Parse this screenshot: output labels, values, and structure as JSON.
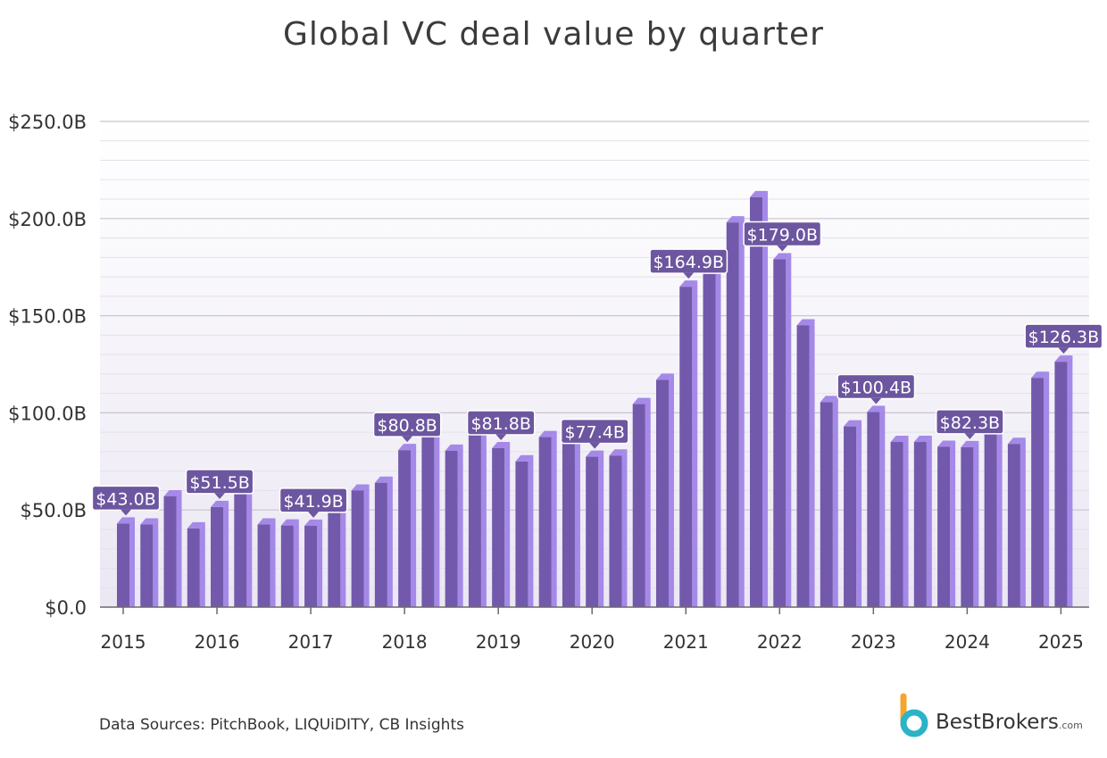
{
  "chart_data": {
    "type": "bar",
    "title": "Global VC deal value by quarter",
    "xlabel": "",
    "ylabel": "",
    "ylim": [
      0,
      250
    ],
    "y_ticks": [
      0,
      50,
      100,
      150,
      200,
      250
    ],
    "y_tick_labels": [
      "$0.0",
      "$50.0B",
      "$100.0B",
      "$150.0B",
      "$200.0B",
      "$250.0B"
    ],
    "x_tick_labels": [
      "2015",
      "2016",
      "2017",
      "2018",
      "2019",
      "2020",
      "2021",
      "2022",
      "2023",
      "2024",
      "2025"
    ],
    "categories": [
      "2015 Q1",
      "2015 Q2",
      "2015 Q3",
      "2015 Q4",
      "2016 Q1",
      "2016 Q2",
      "2016 Q3",
      "2016 Q4",
      "2017 Q1",
      "2017 Q2",
      "2017 Q3",
      "2017 Q4",
      "2018 Q1",
      "2018 Q2",
      "2018 Q3",
      "2018 Q4",
      "2019 Q1",
      "2019 Q2",
      "2019 Q3",
      "2019 Q4",
      "2020 Q1",
      "2020 Q2",
      "2020 Q3",
      "2020 Q4",
      "2021 Q1",
      "2021 Q2",
      "2021 Q3",
      "2021 Q4",
      "2022 Q1",
      "2022 Q2",
      "2022 Q3",
      "2022 Q4",
      "2023 Q1",
      "2023 Q2",
      "2023 Q3",
      "2023 Q4",
      "2024 Q1",
      "2024 Q2",
      "2024 Q3",
      "2024 Q4",
      "2025 Q1"
    ],
    "values": [
      43.0,
      42.5,
      57.0,
      40.5,
      51.5,
      60.0,
      42.5,
      42.0,
      41.9,
      50.5,
      60.0,
      64.0,
      80.8,
      88.0,
      80.5,
      90.0,
      81.8,
      75.0,
      87.5,
      87.0,
      77.4,
      78.0,
      104.5,
      117.0,
      164.9,
      174.0,
      198.0,
      211.0,
      179.0,
      145.0,
      105.5,
      93.0,
      100.4,
      85.0,
      85.0,
      82.5,
      82.3,
      91.0,
      84.0,
      118.0,
      126.3
    ],
    "data_labels": [
      {
        "index": 0,
        "text": "$43.0B"
      },
      {
        "index": 4,
        "text": "$51.5B"
      },
      {
        "index": 8,
        "text": "$41.9B"
      },
      {
        "index": 12,
        "text": "$80.8B"
      },
      {
        "index": 16,
        "text": "$81.8B"
      },
      {
        "index": 20,
        "text": "$77.4B"
      },
      {
        "index": 24,
        "text": "$164.9B"
      },
      {
        "index": 28,
        "text": "$179.0B"
      },
      {
        "index": 32,
        "text": "$100.4B"
      },
      {
        "index": 36,
        "text": "$82.3B"
      },
      {
        "index": 40,
        "text": "$126.3B"
      }
    ],
    "grid": true,
    "colors": {
      "bar_front": "#7259ab",
      "bar_side": "#a589e8",
      "label_bg": "#6c569f",
      "grid": "#d9d6df",
      "bg_bottom": "#ebe7f3"
    }
  },
  "source": "Data Sources: PitchBook, LIQUiDITY, CB Insights",
  "brand": {
    "name": "BestBrokers",
    "tld": ".com",
    "colors": {
      "orange": "#f4a530",
      "teal": "#2bb3c7"
    }
  }
}
